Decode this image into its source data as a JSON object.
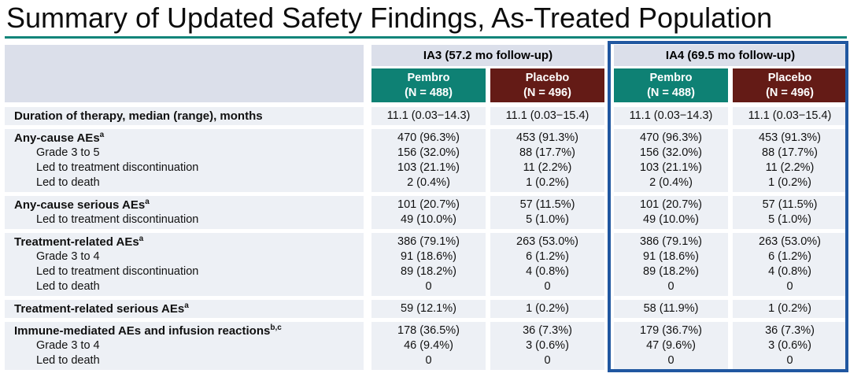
{
  "page": {
    "title": "Summary of Updated Safety Findings, As-Treated Population"
  },
  "colors": {
    "accent_teal": "#0E8174",
    "maroon": "#641B16",
    "highlight_blue": "#2057A0",
    "header_lavender": "#DBDFEA",
    "row_background": "#EDF0F5"
  },
  "table": {
    "group_headers": [
      "IA3 (57.2 mo follow-up)",
      "IA4 (69.5 mo follow-up)"
    ],
    "arms": [
      {
        "name": "Pembro",
        "n": "(N = 488)"
      },
      {
        "name": "Placebo",
        "n": "(N = 496)"
      },
      {
        "name": "Pembro",
        "n": "(N = 488)"
      },
      {
        "name": "Placebo",
        "n": "(N = 496)"
      }
    ],
    "row_groups": [
      {
        "rows": [
          {
            "label": "Duration of therapy, median (range), months",
            "sup": "",
            "values": [
              "11.1 (0.03−14.3)",
              "11.1 (0.03−15.4)",
              "11.1 (0.03−14.3)",
              "11.1 (0.03−15.4)"
            ]
          }
        ]
      },
      {
        "rows": [
          {
            "label": "Any-cause AEs",
            "sup": "a",
            "values": [
              "470 (96.3%)",
              "453 (91.3%)",
              "470 (96.3%)",
              "453 (91.3%)"
            ]
          },
          {
            "label": "Grade 3 to 5",
            "values": [
              "156 (32.0%)",
              "88 (17.7%)",
              "156 (32.0%)",
              "88 (17.7%)"
            ]
          },
          {
            "label": "Led to treatment discontinuation",
            "values": [
              "103 (21.1%)",
              "11 (2.2%)",
              "103 (21.1%)",
              "11 (2.2%)"
            ]
          },
          {
            "label": "Led to death",
            "values": [
              "2 (0.4%)",
              "1 (0.2%)",
              "2 (0.4%)",
              "1 (0.2%)"
            ]
          }
        ]
      },
      {
        "rows": [
          {
            "label": "Any-cause serious AEs",
            "sup": "a",
            "values": [
              "101 (20.7%)",
              "57 (11.5%)",
              "101 (20.7%)",
              "57 (11.5%)"
            ]
          },
          {
            "label": "Led to treatment discontinuation",
            "values": [
              "49 (10.0%)",
              "5 (1.0%)",
              "49 (10.0%)",
              "5 (1.0%)"
            ]
          }
        ]
      },
      {
        "rows": [
          {
            "label": "Treatment-related AEs",
            "sup": "a",
            "values": [
              "386 (79.1%)",
              "263 (53.0%)",
              "386 (79.1%)",
              "263 (53.0%)"
            ]
          },
          {
            "label": "Grade 3 to 4",
            "values": [
              "91 (18.6%)",
              "6 (1.2%)",
              "91 (18.6%)",
              "6 (1.2%)"
            ]
          },
          {
            "label": "Led to treatment discontinuation",
            "values": [
              "89 (18.2%)",
              "4 (0.8%)",
              "89 (18.2%)",
              "4 (0.8%)"
            ]
          },
          {
            "label": "Led to death",
            "values": [
              "0",
              "0",
              "0",
              "0"
            ]
          }
        ]
      },
      {
        "rows": [
          {
            "label": "Treatment-related serious AEs",
            "sup": "a",
            "values": [
              "59 (12.1%)",
              "1 (0.2%)",
              "58 (11.9%)",
              "1 (0.2%)"
            ]
          }
        ]
      },
      {
        "rows": [
          {
            "label": "Immune-mediated AEs and infusion reactions",
            "sup": "b,c",
            "values": [
              "178 (36.5%)",
              "36 (7.3%)",
              "179 (36.7%)",
              "36 (7.3%)"
            ]
          },
          {
            "label": "Grade 3 to 4",
            "values": [
              "46 (9.4%)",
              "3 (0.6%)",
              "47 (9.6%)",
              "3 (0.6%)"
            ]
          },
          {
            "label": "Led to death",
            "values": [
              "0",
              "0",
              "0",
              "0"
            ]
          }
        ]
      }
    ]
  }
}
